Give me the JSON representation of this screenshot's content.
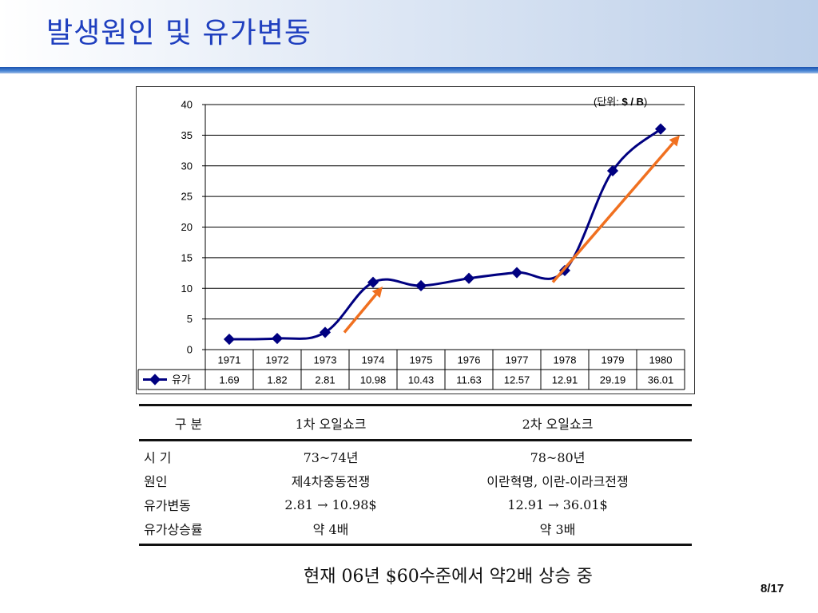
{
  "slide": {
    "title": "발생원인 및 유가변동",
    "page": "8/17",
    "note": "현재 06년 $60수준에서 약2배 상승 중"
  },
  "chart_data": {
    "type": "line",
    "unit_prefix": "(단위: ",
    "unit_bold": "$ / B",
    "unit_suffix": ")",
    "categories": [
      "1971",
      "1972",
      "1973",
      "1974",
      "1975",
      "1976",
      "1977",
      "1978",
      "1979",
      "1980"
    ],
    "series": [
      {
        "name": "유가",
        "values": [
          1.69,
          1.82,
          2.81,
          10.98,
          10.43,
          11.63,
          12.57,
          12.91,
          29.19,
          36.01
        ],
        "color": "#000080"
      }
    ],
    "y_ticks": [
      "0",
      "5",
      "10",
      "15",
      "20",
      "25",
      "30",
      "35",
      "40"
    ],
    "ylim": [
      0,
      40
    ],
    "grid": true,
    "data_table": true,
    "value_labels": [
      "1.69",
      "1.82",
      "2.81",
      "10.98",
      "10.43",
      "11.63",
      "12.57",
      "12.91",
      "29.19",
      "36.01"
    ],
    "annotations": [
      {
        "kind": "arrow",
        "color": "#f07020",
        "from": {
          "x": "1973.4",
          "y": 2.8
        },
        "to": {
          "x": "1974.2",
          "y": 10.3
        }
      },
      {
        "kind": "arrow",
        "color": "#f07020",
        "from": {
          "x": "1977.75",
          "y": 11.0
        },
        "to": {
          "x": "1980.4",
          "y": 35.0
        }
      }
    ]
  },
  "summary_table": {
    "headers": [
      "구  분",
      "1차 오일쇼크",
      "2차 오일쇼크"
    ],
    "rows": [
      [
        "시  기",
        "73~74년",
        "78~80년"
      ],
      [
        "원인",
        "제4차중동전쟁",
        "이란혁명, 이란-이라크전쟁"
      ],
      [
        "유가변동",
        "2.81 → 10.98$",
        "12.91 → 36.01$"
      ],
      [
        "유가상승률",
        "약 4배",
        "약 3배"
      ]
    ]
  }
}
